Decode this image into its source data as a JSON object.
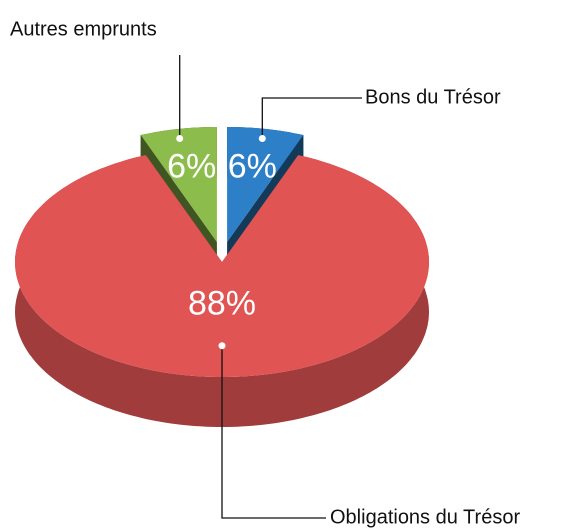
{
  "chart_data": {
    "type": "pie3d",
    "categories": [
      "Bons du Trésor",
      "Obligations du Trésor",
      "Autres emprunts"
    ],
    "values": [
      6,
      88,
      6
    ],
    "value_labels": [
      "6%",
      "88%",
      "6%"
    ],
    "colors": [
      "#2d80c8",
      "#e05454",
      "#8cbc4c"
    ]
  }
}
